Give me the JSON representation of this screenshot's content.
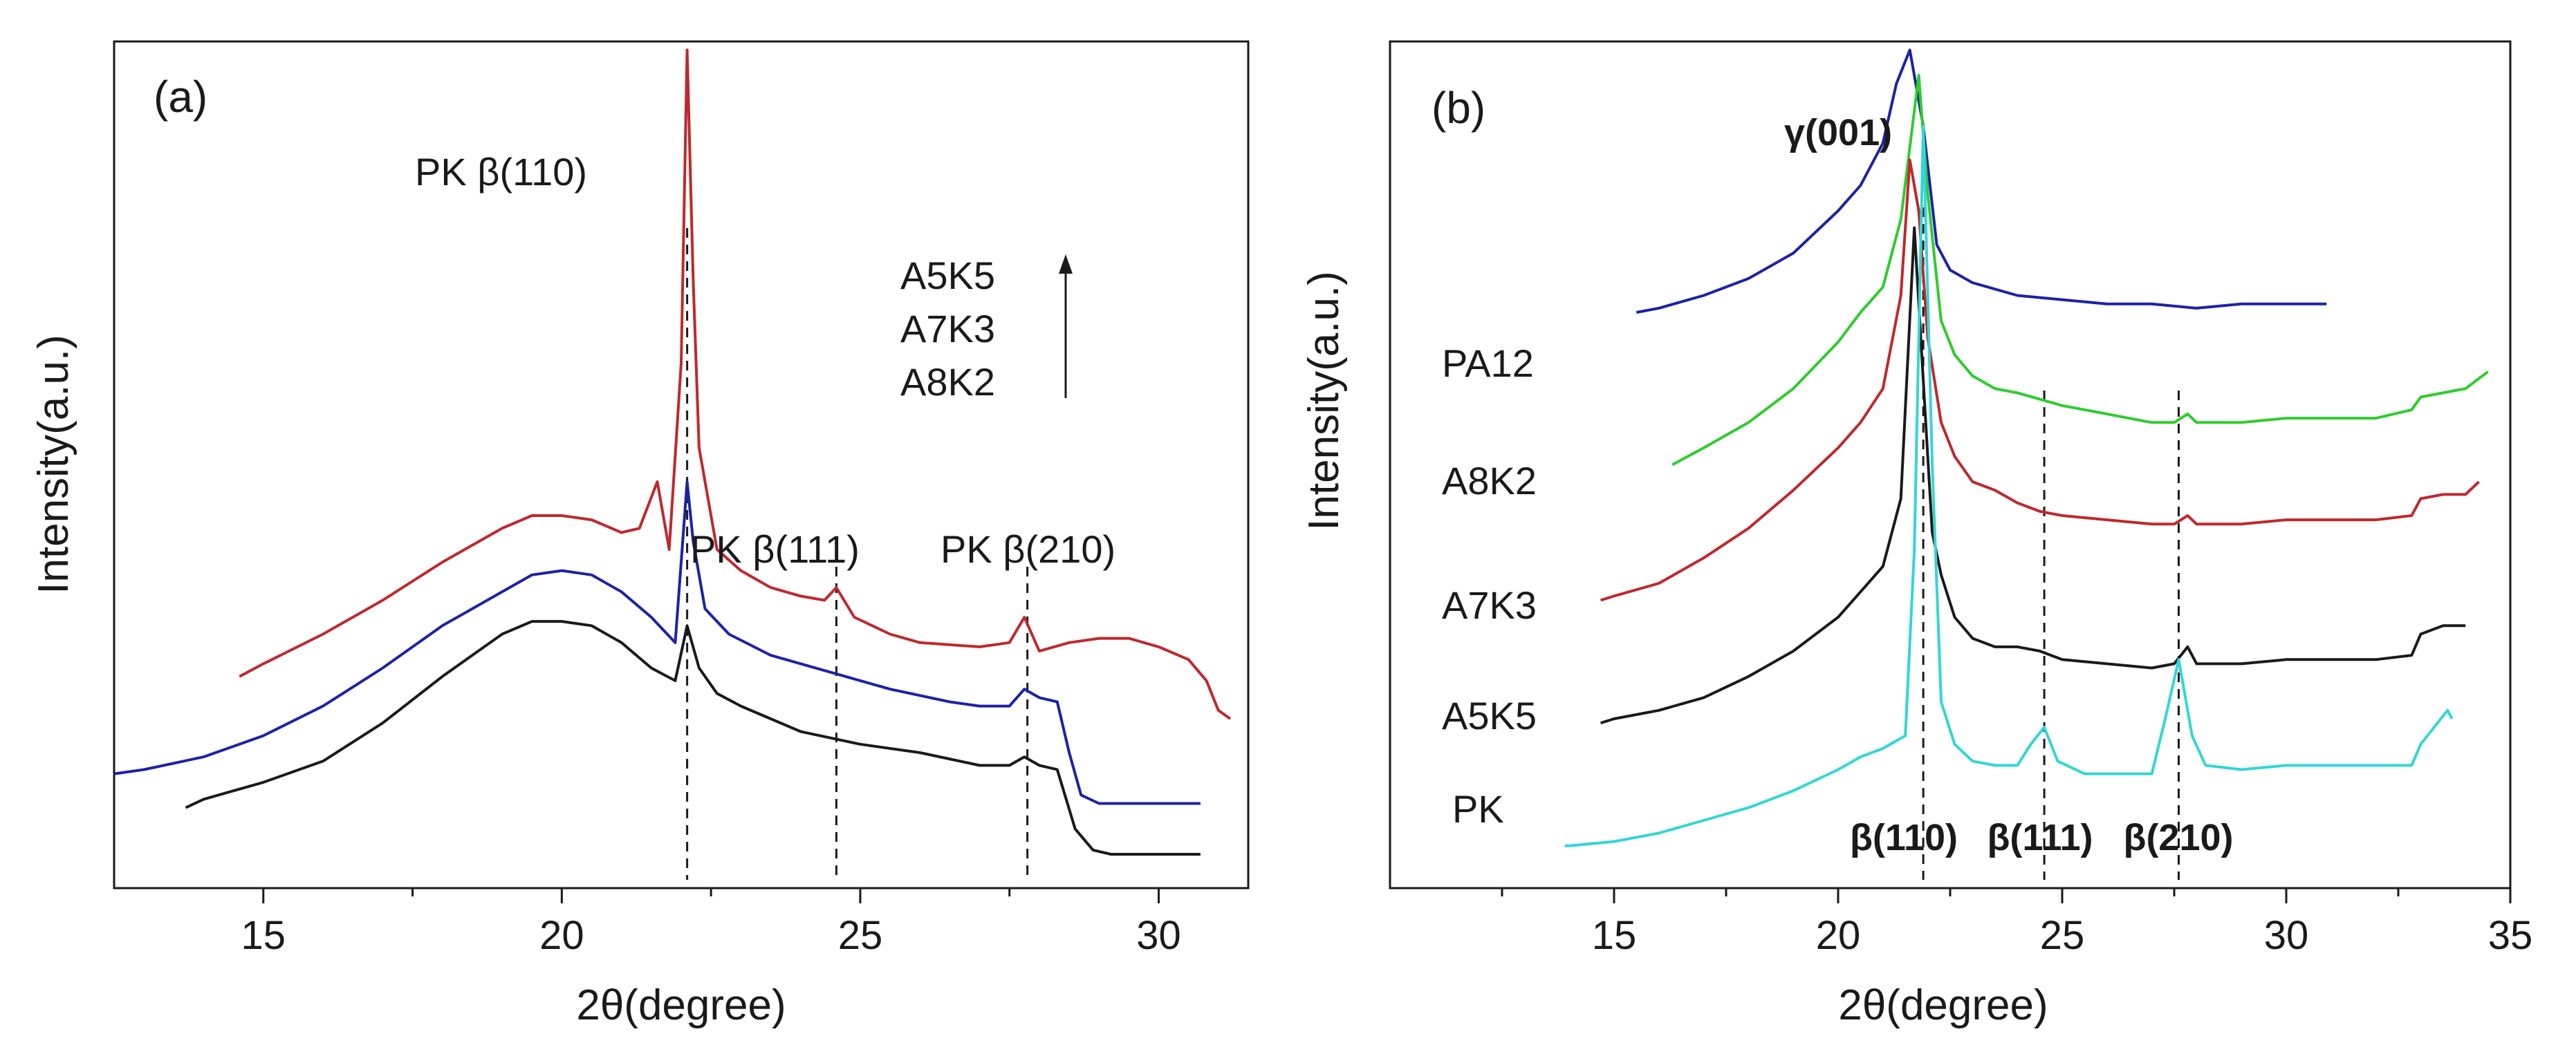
{
  "chart_data": [
    {
      "type": "line",
      "panel_label": "(a)",
      "xlabel": "2θ(degree)",
      "ylabel": "Intensity(a.u.)",
      "xlim": [
        12.5,
        31.5
      ],
      "ylim": [
        0,
        100
      ],
      "xticks": [
        15,
        20,
        25,
        30
      ],
      "xtick_labels": [
        "15",
        "20",
        "25",
        "30"
      ],
      "series": [
        {
          "name": "A5K5",
          "color": "#c0282c",
          "x": [
            14.6,
            15,
            16,
            17,
            18,
            19,
            19.5,
            20,
            20.5,
            21,
            21.3,
            21.6,
            21.8,
            22.0,
            22.1,
            22.2,
            22.3,
            22.6,
            23,
            23.5,
            24,
            24.4,
            24.6,
            24.9,
            25.5,
            26,
            27,
            27.5,
            27.75,
            28,
            28.5,
            29,
            29.5,
            30,
            30.5,
            30.8,
            31,
            31.2
          ],
          "y": [
            25,
            26.5,
            30,
            34,
            38.5,
            42.5,
            44,
            44,
            43.5,
            42,
            42.5,
            48,
            40,
            62,
            99,
            72,
            52,
            40,
            37.5,
            35.5,
            34.5,
            34,
            35.5,
            32,
            30,
            29,
            28.5,
            29,
            32,
            28,
            29,
            29.5,
            29.5,
            28.5,
            27,
            24.5,
            21,
            20
          ]
        },
        {
          "name": "A7K3",
          "color": "#1c22a6",
          "x": [
            12.5,
            13,
            14,
            15,
            16,
            17,
            18,
            19,
            19.5,
            20,
            20.5,
            21,
            21.5,
            21.9,
            22.1,
            22.2,
            22.4,
            22.8,
            23.5,
            24.5,
            25.5,
            26.5,
            27,
            27.5,
            27.75,
            28,
            28.3,
            28.5,
            28.7,
            29,
            30,
            30.7
          ],
          "y": [
            13.5,
            14,
            15.5,
            18,
            21.5,
            26,
            31,
            35,
            37,
            37.5,
            37,
            35,
            32,
            29,
            48,
            41,
            33,
            30,
            27.5,
            25.5,
            23.5,
            22,
            21.5,
            21.5,
            23.5,
            22.5,
            22,
            16,
            11,
            10,
            10,
            10
          ]
        },
        {
          "name": "A8K2",
          "color": "#1a1a1a",
          "x": [
            13.7,
            14,
            15,
            16,
            17,
            18,
            19,
            19.5,
            20,
            20.5,
            21,
            21.5,
            21.9,
            22.1,
            22.3,
            22.6,
            23,
            24,
            25,
            26,
            27,
            27.5,
            27.75,
            28,
            28.3,
            28.6,
            28.9,
            29.2,
            30,
            30.7
          ],
          "y": [
            9.5,
            10.5,
            12.5,
            15,
            19.5,
            25,
            30,
            31.5,
            31.5,
            31,
            29,
            26,
            24.5,
            31,
            26,
            23,
            21.5,
            18.5,
            17,
            16,
            14.5,
            14.5,
            15.5,
            14.5,
            14,
            7,
            4.5,
            4,
            4,
            4
          ]
        }
      ],
      "legend": [
        "A5K5",
        "A7K3",
        "A8K2"
      ],
      "legend_position": "top-right",
      "legend_arrow": "up",
      "reference_lines": [
        22.1,
        24.6,
        27.8
      ],
      "annotations": [
        {
          "text": "PK β(110)",
          "x": 20.2,
          "y": 92
        },
        {
          "text": "PK β(111)",
          "x": 23.5,
          "y": 44
        },
        {
          "text": "PK β(210)",
          "x": 27.7,
          "y": 44
        }
      ]
    },
    {
      "type": "line",
      "panel_label": "(b)",
      "xlabel": "2θ(degree)",
      "ylabel": "Intensity(a.u.)",
      "xlim": [
        10,
        35
      ],
      "ylim": [
        0,
        100
      ],
      "xticks": [
        15,
        20,
        25,
        30,
        35
      ],
      "xtick_labels": [
        "15",
        "20",
        "25",
        "30",
        "35"
      ],
      "series": [
        {
          "name": "PA12",
          "label": "PA12",
          "color": "#1c22a6",
          "x": [
            15.5,
            16,
            17,
            18,
            19,
            20,
            20.5,
            21,
            21.3,
            21.6,
            21.9,
            22.2,
            22.5,
            23,
            24,
            25,
            26,
            27,
            28,
            29,
            30,
            30.9
          ],
          "y": [
            68,
            68.5,
            70,
            72,
            75,
            80,
            83,
            88,
            95,
            99,
            90,
            76,
            73,
            71.5,
            70,
            69.5,
            69,
            69,
            68.5,
            69,
            69,
            69
          ]
        },
        {
          "name": "A8K2",
          "label": "A8K2",
          "color": "#2ecc2e",
          "x": [
            16.3,
            17,
            18,
            19,
            20,
            20.5,
            21,
            21.4,
            21.8,
            22.0,
            22.3,
            22.6,
            23,
            23.5,
            24,
            25,
            26,
            27,
            27.5,
            27.8,
            28,
            29,
            30,
            31,
            32,
            32.8,
            33,
            33.5,
            34,
            34.5
          ],
          "y": [
            50,
            52,
            55,
            59,
            64.5,
            68,
            71,
            79,
            96,
            82,
            67,
            63,
            60.5,
            59,
            58.5,
            57,
            56,
            55,
            55,
            56,
            55,
            55,
            55.5,
            55.5,
            55.5,
            56.5,
            58,
            58.5,
            59,
            61
          ]
        },
        {
          "name": "A7K3",
          "label": "A7K3",
          "color": "#c0282c",
          "x": [
            14.7,
            15,
            16,
            17,
            18,
            19,
            20,
            20.5,
            21,
            21.4,
            21.6,
            21.8,
            22.0,
            22.3,
            22.6,
            23,
            23.5,
            24,
            24.5,
            25,
            26,
            27,
            27.5,
            27.8,
            28,
            29,
            30,
            31,
            32,
            32.8,
            33,
            33.5,
            34,
            34.3
          ],
          "y": [
            34,
            34.5,
            36,
            39,
            42.5,
            47,
            52,
            55,
            59,
            70,
            86,
            80,
            65,
            55,
            51,
            48,
            47,
            45.5,
            44.5,
            44,
            43.5,
            43,
            43,
            44,
            43,
            43,
            43.5,
            43.5,
            43.5,
            44,
            46,
            46.5,
            46.5,
            48
          ]
        },
        {
          "name": "A5K5",
          "label": "A5K5",
          "color": "#1a1a1a",
          "x": [
            14.7,
            15,
            16,
            17,
            18,
            19,
            20,
            20.5,
            21,
            21.4,
            21.7,
            21.9,
            22.1,
            22.3,
            22.6,
            23,
            23.5,
            24,
            24.5,
            25,
            26,
            27,
            27.5,
            27.8,
            28,
            29,
            30,
            31,
            32,
            32.8,
            33,
            33.5,
            34
          ],
          "y": [
            19.5,
            20,
            21,
            22.5,
            25,
            28,
            32,
            35,
            38,
            46,
            78,
            60,
            42,
            37,
            32,
            29.5,
            28.5,
            28.5,
            28,
            27,
            26.5,
            26,
            26.5,
            28.5,
            26.5,
            26.5,
            27,
            27,
            27,
            27.5,
            30,
            31,
            31
          ]
        },
        {
          "name": "PK",
          "label": "PK",
          "color": "#33d6d6",
          "x": [
            13.9,
            14,
            15,
            16,
            17,
            18,
            19,
            20,
            20.5,
            21,
            21.5,
            21.7,
            21.9,
            22.1,
            22.3,
            22.6,
            23,
            23.5,
            24,
            24.3,
            24.6,
            24.9,
            25.5,
            26,
            27,
            27.3,
            27.6,
            27.9,
            28.2,
            29,
            30,
            31,
            32,
            32.8,
            33,
            33.3,
            33.6,
            33.7
          ],
          "y": [
            5,
            5,
            5.5,
            6.5,
            8,
            9.5,
            11.5,
            14,
            15.5,
            16.5,
            18,
            40,
            90,
            50,
            22,
            17,
            15,
            14.5,
            14.5,
            17,
            19,
            15,
            13.5,
            13.5,
            13.5,
            20,
            27,
            18,
            14.5,
            14,
            14.5,
            14.5,
            14.5,
            14.5,
            17,
            19,
            21,
            20
          ]
        }
      ],
      "reference_lines": [
        21.9,
        24.6,
        27.6
      ],
      "annotations": [
        {
          "text": "γ(001)",
          "x": 20.7,
          "y": 95,
          "bold": true
        },
        {
          "text": "β(110)",
          "x": 21.9,
          "y": 7,
          "bold": true
        },
        {
          "text": "β(111)",
          "x": 24.6,
          "y": 7,
          "bold": true
        },
        {
          "text": "β(210)",
          "x": 27.6,
          "y": 7,
          "bold": true
        }
      ]
    }
  ]
}
